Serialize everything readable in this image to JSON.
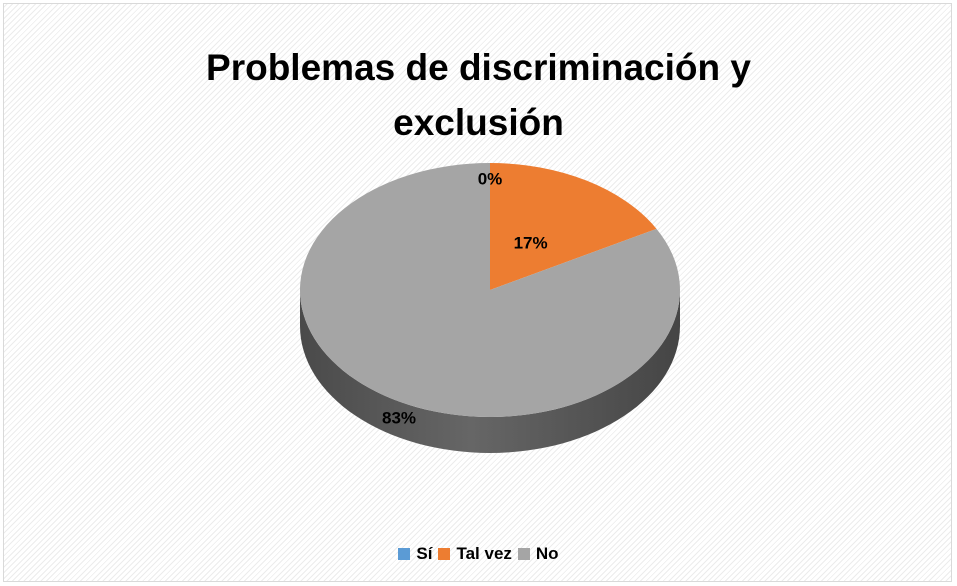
{
  "chart_data": {
    "type": "pie",
    "style": "3d-pie",
    "title_lines": [
      "Problemas de discriminación y",
      "exclusión"
    ],
    "categories": [
      "Sí",
      "Tal vez",
      "No"
    ],
    "values": [
      0,
      17,
      83
    ],
    "labels": [
      "0%",
      "17%",
      "83%"
    ],
    "colors": [
      "#5b9bd5",
      "#ed7d31",
      "#a5a5a5"
    ],
    "legend_position": "bottom"
  }
}
